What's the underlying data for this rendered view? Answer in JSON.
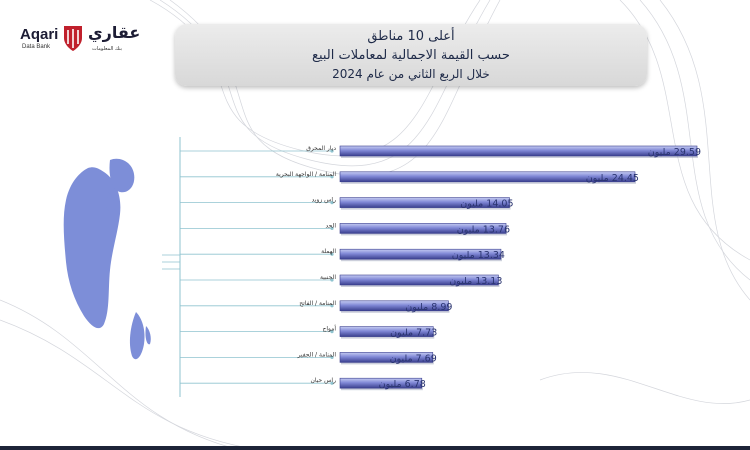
{
  "brand": {
    "name_en": "Aqari",
    "sub_en": "Data Bank",
    "name_ar": "عقاري",
    "sub_ar": "بنك المعلومات",
    "accent": "#c0202c"
  },
  "title": {
    "line1": "أعلى 10 مناطق",
    "line2": "حسب القيمة الاجمالية لمعاملات البيع",
    "line3": "خلال الربع  الثاني من عام 2024"
  },
  "colors": {
    "bar_fill": "#8088d6",
    "bar_dark": "#3a3f8e",
    "connector": "#8fc3cf",
    "map": "#7d8ed8",
    "label": "#2a3470"
  },
  "chart_data": {
    "type": "bar",
    "orientation": "horizontal",
    "unit": "مليون",
    "categories": [
      "ديار المحرق",
      "المنامة / الواجهة البحرية",
      "راس زويد",
      "الحد",
      "الهملة",
      "الجنبية",
      "المنامة / الفاتح",
      "أمواج",
      "المنامة / الجفير",
      "راس حيان"
    ],
    "values": [
      29.59,
      24.45,
      14.05,
      13.76,
      13.34,
      13.13,
      8.99,
      7.73,
      7.69,
      6.78
    ],
    "value_labels": [
      "29.59 مليون",
      "24.45 مليون",
      "14.05 مليون",
      "13.76 مليون",
      "13.34 مليون",
      "13.13 مليون",
      "8.99 مليون",
      "7.73 مليون",
      "7.69 مليون",
      "6.78 مليون"
    ]
  }
}
